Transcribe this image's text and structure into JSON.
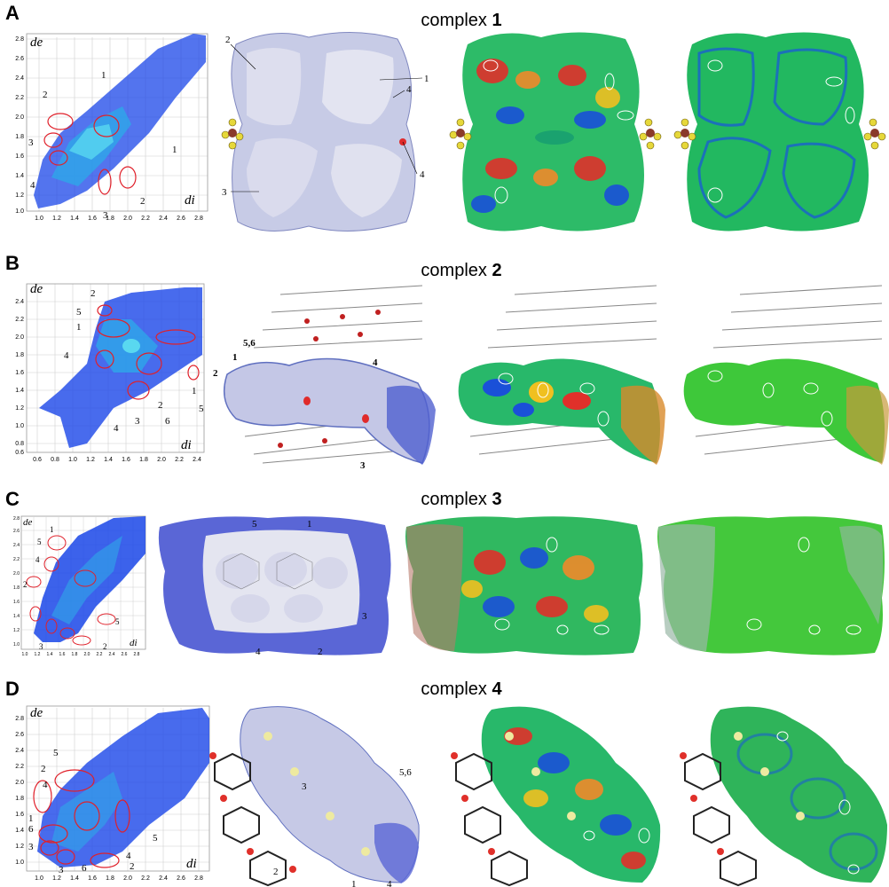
{
  "figure": {
    "panels": [
      {
        "letter": "A",
        "title_prefix": "complex ",
        "title_number": "1",
        "fingerprint": {
          "x_axis_label": "di",
          "y_axis_label": "de",
          "x_ticks": [
            "1.0",
            "1.2",
            "1.4",
            "1.6",
            "1.8",
            "2.0",
            "2.2",
            "2.4",
            "2.6",
            "2.8"
          ],
          "y_ticks": [
            "2.8",
            "2.6",
            "2.4",
            "2.2",
            "2.0",
            "1.8",
            "1.6",
            "1.4",
            "1.2",
            "1.0"
          ],
          "region_labels": [
            "1",
            "2",
            "3",
            "4",
            "1",
            "3",
            "2"
          ]
        },
        "dnorm_labels": [
          "2",
          "1",
          "4",
          "4",
          "3"
        ]
      },
      {
        "letter": "B",
        "title_prefix": "complex ",
        "title_number": "2",
        "fingerprint": {
          "x_axis_label": "di",
          "y_axis_label": "de",
          "x_ticks": [
            "0.6",
            "0.8",
            "1.0",
            "1.2",
            "1.4",
            "1.6",
            "1.8",
            "2.0",
            "2.2",
            "2.4"
          ],
          "y_ticks": [
            "2.4",
            "2.2",
            "2.0",
            "1.8",
            "1.6",
            "1.4",
            "1.2",
            "1.0",
            "0.8",
            "0.6"
          ],
          "region_labels": [
            "2",
            "5",
            "1",
            "4",
            "1",
            "5",
            "2",
            "3",
            "4",
            "6"
          ]
        },
        "dnorm_labels": [
          "5,6",
          "1",
          "2",
          "4",
          "3"
        ]
      },
      {
        "letter": "C",
        "title_prefix": "complex ",
        "title_number": "3",
        "fingerprint": {
          "x_axis_label": "di",
          "y_axis_label": "de",
          "x_ticks": [
            "1.0",
            "1.2",
            "1.4",
            "1.6",
            "1.8",
            "2.0",
            "2.2",
            "2.4",
            "2.6",
            "2.8"
          ],
          "y_ticks": [
            "2.8",
            "2.6",
            "2.4",
            "2.2",
            "2.0",
            "1.8",
            "1.6",
            "1.4",
            "1.2",
            "1.0"
          ],
          "region_labels": [
            "1",
            "5",
            "4",
            "2",
            "3",
            "5",
            "2"
          ]
        },
        "dnorm_labels": [
          "5",
          "1",
          "3",
          "4",
          "2"
        ]
      },
      {
        "letter": "D",
        "title_prefix": "complex ",
        "title_number": "4",
        "fingerprint": {
          "x_axis_label": "di",
          "y_axis_label": "de",
          "x_ticks": [
            "1.0",
            "1.2",
            "1.4",
            "1.6",
            "1.8",
            "2.0",
            "2.2",
            "2.4",
            "2.6",
            "2.8"
          ],
          "y_ticks": [
            "2.8",
            "2.6",
            "2.4",
            "2.2",
            "2.0",
            "1.8",
            "1.6",
            "1.4",
            "1.2",
            "1.0"
          ],
          "region_labels": [
            "5",
            "2",
            "4",
            "1",
            "6",
            "3",
            "3",
            "6",
            "4",
            "2",
            "5"
          ]
        },
        "dnorm_labels": [
          "3",
          "5,6",
          "2",
          "1",
          "4"
        ]
      }
    ]
  }
}
